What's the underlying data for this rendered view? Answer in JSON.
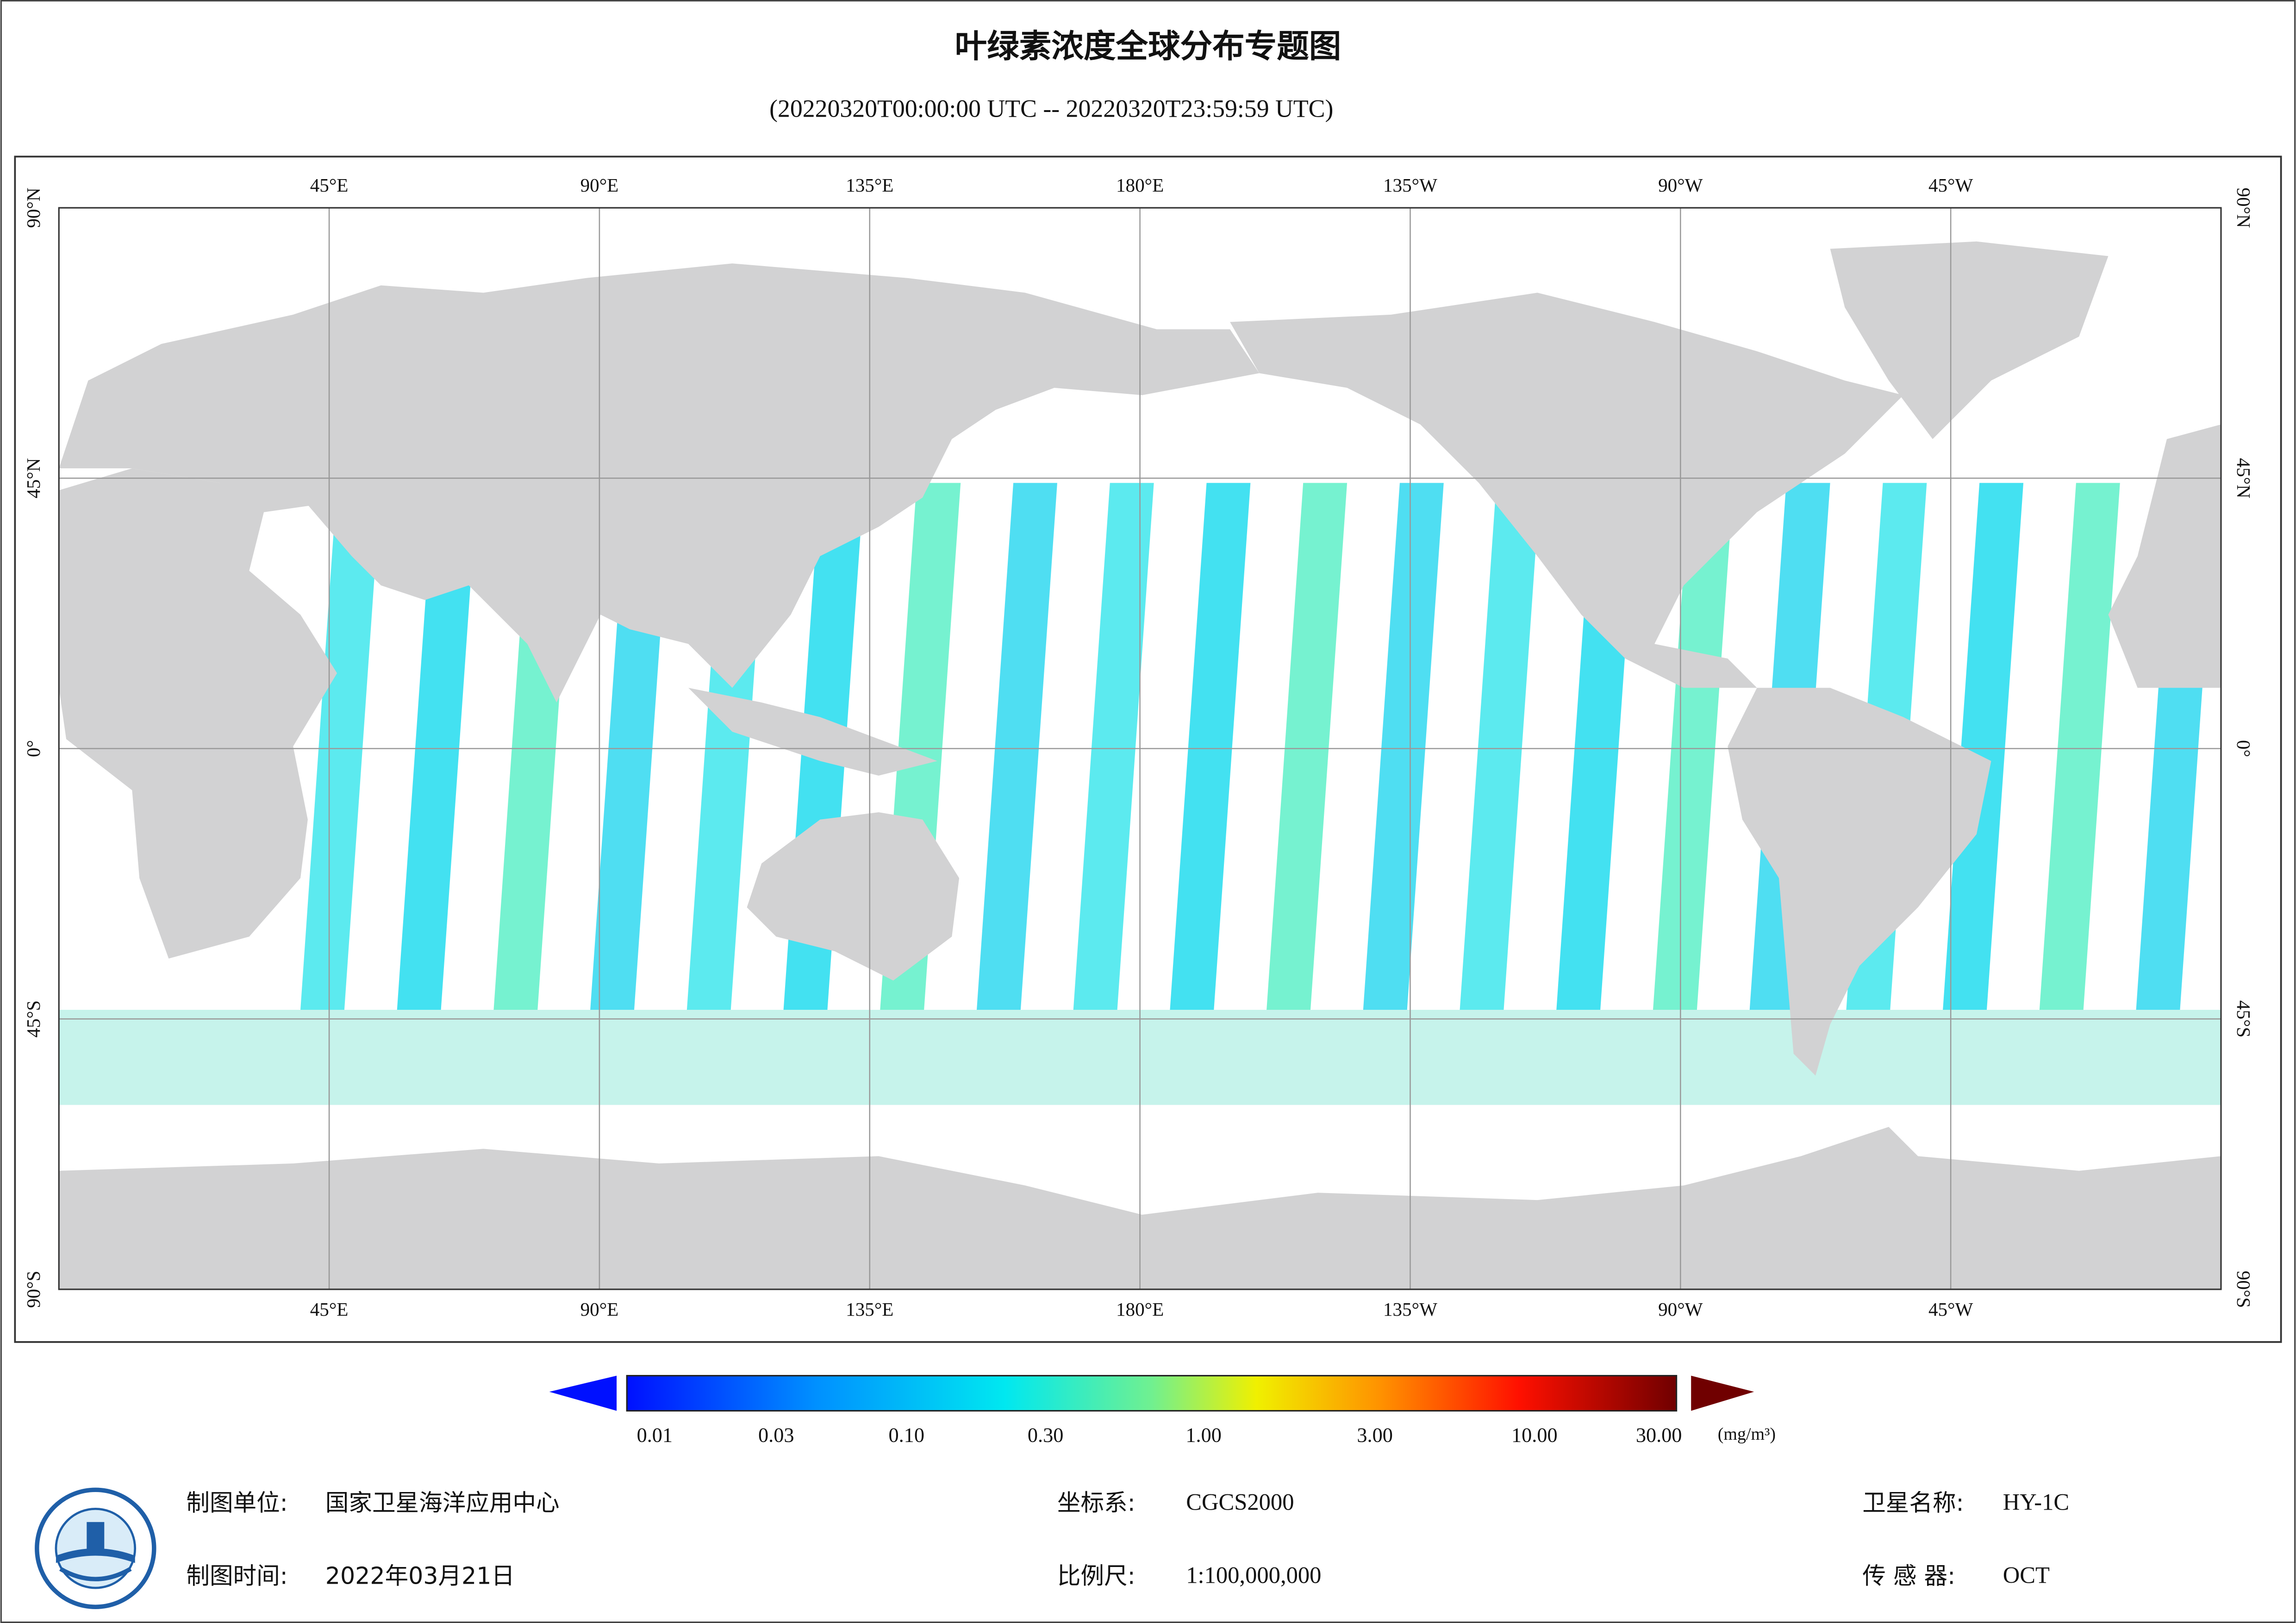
{
  "header": {
    "title": "叶绿素浓度全球分布专题图",
    "subtitle": "(20220320T00:00:00 UTC -- 20220320T23:59:59 UTC)"
  },
  "map": {
    "lon_labels": [
      "45°E",
      "90°E",
      "135°E",
      "180°E",
      "135°W",
      "90°W",
      "45°W"
    ],
    "lat_labels": [
      "90°N",
      "45°N",
      "0°",
      "45°S",
      "90°S"
    ]
  },
  "colorbar": {
    "labels": [
      "0.01",
      "0.03",
      "0.10",
      "0.30",
      "1.00",
      "3.00",
      "10.00",
      "30.00"
    ],
    "unit": "(mg/m³)"
  },
  "footer": {
    "rows": [
      [
        {
          "key": "制图单位:",
          "value": "国家卫星海洋应用中心"
        },
        {
          "key": "坐标系:",
          "value": "CGCS2000"
        },
        {
          "key": "卫星名称:",
          "value": "HY-1C"
        }
      ],
      [
        {
          "key": "制图时间:",
          "value": "2022年03月21日"
        },
        {
          "key": "比例尺:",
          "value": "1:100,000,000"
        },
        {
          "key": "传 感 器:",
          "value": "OCT"
        }
      ]
    ]
  }
}
